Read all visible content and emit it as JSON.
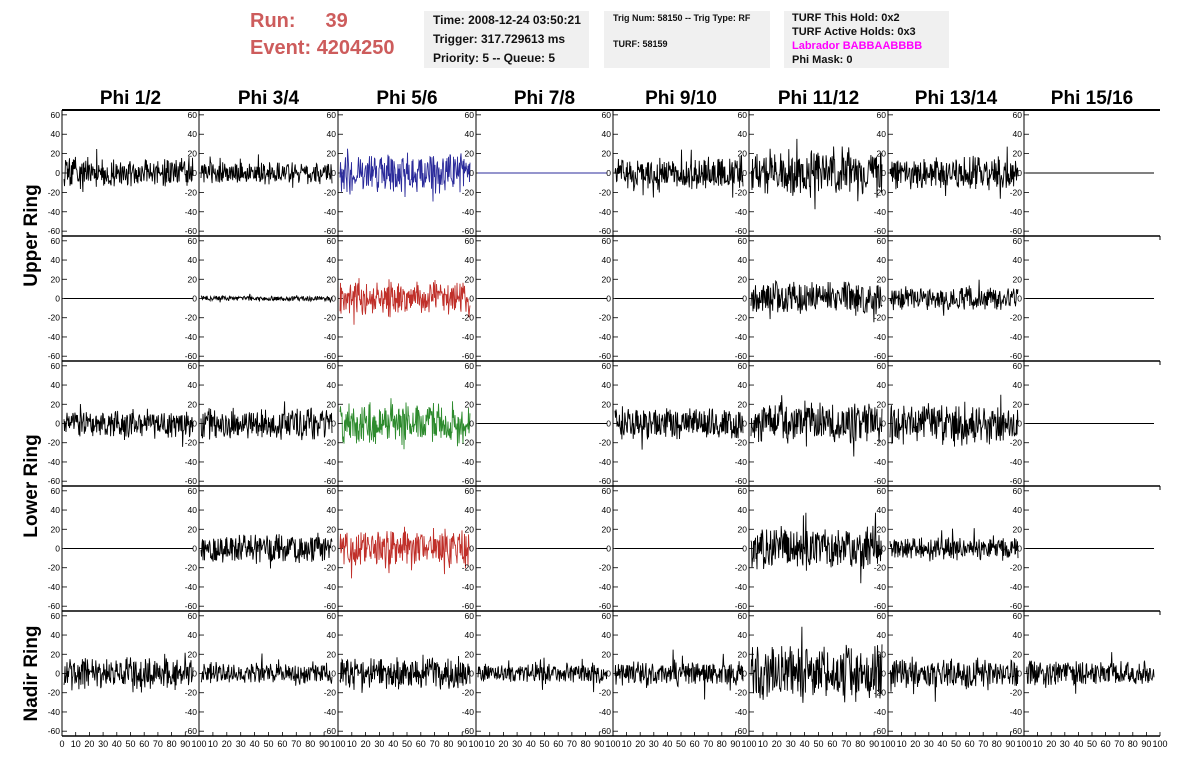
{
  "run": {
    "label": "Run:",
    "value": "39"
  },
  "event": {
    "label": "Event:",
    "value": "4204250"
  },
  "info1": {
    "time": "Time: 2008-12-24 03:50:21",
    "trigger": "Trigger: 317.729613 ms",
    "priority": "Priority: 5 -- Queue: 5"
  },
  "info2": {
    "trig": "Trig Num: 58150 -- Trig Type: RF",
    "turf": "TURF: 58159"
  },
  "info3": {
    "hold": "TURF This Hold: 0x2",
    "active": "TURF Active Holds: 0x3",
    "labrador": "Labrador BABBAABBBB",
    "phimask": "Phi Mask: 0"
  },
  "chart_data": {
    "type": "line",
    "columns": [
      "Phi 1/2",
      "Phi 3/4",
      "Phi 5/6",
      "Phi 7/8",
      "Phi 9/10",
      "Phi 11/12",
      "Phi 13/14",
      "Phi 15/16"
    ],
    "rows": [
      "Upper Ring",
      "Lower Ring",
      "Nadir Ring"
    ],
    "xlim": [
      0,
      100
    ],
    "ylim": [
      -65,
      65
    ],
    "y_ticks": [
      -60,
      -40,
      -20,
      0,
      20,
      40,
      60
    ],
    "x_ticks": [
      0,
      10,
      20,
      30,
      40,
      50,
      60,
      70,
      80,
      90,
      100
    ],
    "colors": {
      "default": "#000000",
      "blue": "#2b2b9b",
      "red": "#c0302a",
      "green": "#2e8b2e"
    },
    "panels": [
      {
        "row": 0,
        "col": 0,
        "amplitude": 16,
        "seed": 11,
        "color": "default"
      },
      {
        "row": 0,
        "col": 1,
        "amplitude": 13,
        "seed": 12,
        "color": "default"
      },
      {
        "row": 0,
        "col": 2,
        "amplitude": 24,
        "seed": 13,
        "color": "blue"
      },
      {
        "row": 0,
        "col": 3,
        "amplitude": 0,
        "seed": 14,
        "color": "blue"
      },
      {
        "row": 0,
        "col": 4,
        "amplitude": 18,
        "seed": 15,
        "color": "default"
      },
      {
        "row": 0,
        "col": 5,
        "amplitude": 26,
        "seed": 16,
        "color": "default"
      },
      {
        "row": 0,
        "col": 6,
        "amplitude": 19,
        "seed": 17,
        "color": "default"
      },
      {
        "row": 0,
        "col": 7,
        "amplitude": 0,
        "seed": 18,
        "color": "default"
      },
      {
        "row": 1,
        "col": 0,
        "amplitude": 0,
        "seed": 21,
        "color": "default"
      },
      {
        "row": 1,
        "col": 1,
        "amplitude": 3,
        "seed": 22,
        "color": "default"
      },
      {
        "row": 1,
        "col": 2,
        "amplitude": 21,
        "seed": 23,
        "color": "red"
      },
      {
        "row": 1,
        "col": 3,
        "amplitude": 0,
        "seed": 24,
        "color": "default"
      },
      {
        "row": 1,
        "col": 4,
        "amplitude": 0,
        "seed": 25,
        "color": "default"
      },
      {
        "row": 1,
        "col": 5,
        "amplitude": 20,
        "seed": 26,
        "color": "default"
      },
      {
        "row": 1,
        "col": 6,
        "amplitude": 14,
        "seed": 27,
        "color": "default"
      },
      {
        "row": 1,
        "col": 7,
        "amplitude": 0,
        "seed": 28,
        "color": "default"
      },
      {
        "row": 2,
        "col": 0,
        "amplitude": 17,
        "seed": 31,
        "color": "default"
      },
      {
        "row": 2,
        "col": 1,
        "amplitude": 18,
        "seed": 32,
        "color": "default"
      },
      {
        "row": 2,
        "col": 2,
        "amplitude": 24,
        "seed": 33,
        "color": "green"
      },
      {
        "row": 2,
        "col": 3,
        "amplitude": 0,
        "seed": 34,
        "color": "default"
      },
      {
        "row": 2,
        "col": 4,
        "amplitude": 19,
        "seed": 35,
        "color": "default"
      },
      {
        "row": 2,
        "col": 5,
        "amplitude": 24,
        "seed": 36,
        "color": "default"
      },
      {
        "row": 2,
        "col": 6,
        "amplitude": 23,
        "seed": 37,
        "color": "default"
      },
      {
        "row": 2,
        "col": 7,
        "amplitude": 0,
        "seed": 38,
        "color": "default"
      },
      {
        "row": 3,
        "col": 0,
        "amplitude": 0,
        "seed": 41,
        "color": "default"
      },
      {
        "row": 3,
        "col": 1,
        "amplitude": 17,
        "seed": 42,
        "color": "default"
      },
      {
        "row": 3,
        "col": 2,
        "amplitude": 22,
        "seed": 43,
        "color": "red"
      },
      {
        "row": 3,
        "col": 3,
        "amplitude": 0,
        "seed": 44,
        "color": "default"
      },
      {
        "row": 3,
        "col": 4,
        "amplitude": 0,
        "seed": 45,
        "color": "default"
      },
      {
        "row": 3,
        "col": 5,
        "amplitude": 25,
        "seed": 46,
        "color": "default"
      },
      {
        "row": 3,
        "col": 6,
        "amplitude": 14,
        "seed": 47,
        "color": "default"
      },
      {
        "row": 3,
        "col": 7,
        "amplitude": 0,
        "seed": 48,
        "color": "default"
      },
      {
        "row": 4,
        "col": 0,
        "amplitude": 19,
        "seed": 51,
        "color": "default"
      },
      {
        "row": 4,
        "col": 1,
        "amplitude": 13,
        "seed": 52,
        "color": "default"
      },
      {
        "row": 4,
        "col": 2,
        "amplitude": 18,
        "seed": 53,
        "color": "default"
      },
      {
        "row": 4,
        "col": 3,
        "amplitude": 12,
        "seed": 54,
        "color": "default"
      },
      {
        "row": 4,
        "col": 4,
        "amplitude": 16,
        "seed": 55,
        "color": "default"
      },
      {
        "row": 4,
        "col": 5,
        "amplitude": 32,
        "seed": 56,
        "color": "default"
      },
      {
        "row": 4,
        "col": 6,
        "amplitude": 18,
        "seed": 57,
        "color": "default"
      },
      {
        "row": 4,
        "col": 7,
        "amplitude": 14,
        "seed": 58,
        "color": "default"
      }
    ]
  }
}
